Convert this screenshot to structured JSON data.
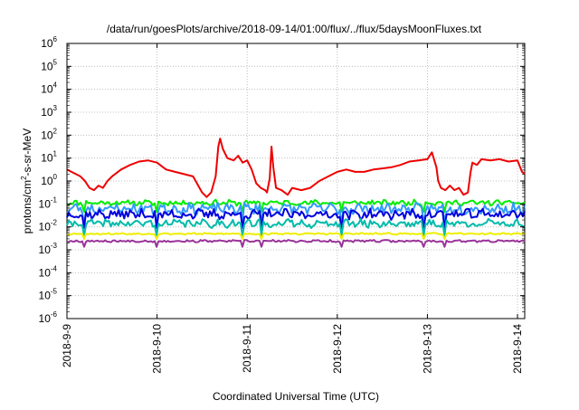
{
  "chart_data": {
    "type": "line",
    "title": "/data/run/goesPlots/archive/2018-09-14/01:00/flux/../flux/5daysMoonFluxes.txt",
    "xlabel": "Coordinated Universal Time (UTC)",
    "ylabel_main": "protons/cm",
    "ylabel_sup": "2",
    "ylabel_rest": "-s-sr-MeV",
    "y_scale": "log",
    "ylim_exp": [
      -6,
      6
    ],
    "ytick_exponents": [
      -6,
      -5,
      -4,
      -3,
      -2,
      -1,
      0,
      1,
      2,
      3,
      4,
      5,
      6
    ],
    "ytick_base": "10",
    "xlim_days": [
      0,
      5.08
    ],
    "xticks": [
      {
        "label": "2018-9-9",
        "day": 0
      },
      {
        "label": "2018-9-10",
        "day": 1
      },
      {
        "label": "2018-9-11",
        "day": 2
      },
      {
        "label": "2018-9-12",
        "day": 3
      },
      {
        "label": "2018-9-13",
        "day": 4
      },
      {
        "label": "2018-9-14",
        "day": 5
      }
    ],
    "grid": true,
    "series": [
      {
        "color": "#ee0000",
        "points": [
          [
            0.0,
            0.5
          ],
          [
            0.05,
            0.4
          ],
          [
            0.1,
            0.3
          ],
          [
            0.15,
            0.2
          ],
          [
            0.2,
            0.0
          ],
          [
            0.25,
            -0.3
          ],
          [
            0.3,
            -0.4
          ],
          [
            0.35,
            -0.2
          ],
          [
            0.4,
            -0.3
          ],
          [
            0.45,
            0.0
          ],
          [
            0.5,
            0.2
          ],
          [
            0.6,
            0.5
          ],
          [
            0.7,
            0.7
          ],
          [
            0.8,
            0.85
          ],
          [
            0.9,
            0.9
          ],
          [
            1.0,
            0.8
          ],
          [
            1.1,
            0.5
          ],
          [
            1.2,
            0.4
          ],
          [
            1.3,
            0.3
          ],
          [
            1.4,
            0.2
          ],
          [
            1.5,
            -0.5
          ],
          [
            1.55,
            -0.7
          ],
          [
            1.6,
            -0.5
          ],
          [
            1.65,
            0.2
          ],
          [
            1.68,
            1.5
          ],
          [
            1.7,
            1.85
          ],
          [
            1.73,
            1.4
          ],
          [
            1.78,
            1.0
          ],
          [
            1.85,
            0.9
          ],
          [
            1.9,
            1.1
          ],
          [
            1.95,
            0.8
          ],
          [
            2.0,
            0.9
          ],
          [
            2.05,
            0.5
          ],
          [
            2.1,
            -0.1
          ],
          [
            2.15,
            -0.3
          ],
          [
            2.2,
            -0.4
          ],
          [
            2.22,
            -0.5
          ],
          [
            2.25,
            0.1
          ],
          [
            2.27,
            1.5
          ],
          [
            2.29,
            0.6
          ],
          [
            2.32,
            -0.3
          ],
          [
            2.38,
            -0.4
          ],
          [
            2.45,
            -0.6
          ],
          [
            2.5,
            -0.3
          ],
          [
            2.6,
            -0.4
          ],
          [
            2.7,
            -0.3
          ],
          [
            2.8,
            0.0
          ],
          [
            2.9,
            0.2
          ],
          [
            3.0,
            0.4
          ],
          [
            3.1,
            0.5
          ],
          [
            3.2,
            0.4
          ],
          [
            3.3,
            0.4
          ],
          [
            3.4,
            0.5
          ],
          [
            3.5,
            0.55
          ],
          [
            3.6,
            0.6
          ],
          [
            3.7,
            0.7
          ],
          [
            3.8,
            0.85
          ],
          [
            3.9,
            0.9
          ],
          [
            4.0,
            0.95
          ],
          [
            4.05,
            1.25
          ],
          [
            4.1,
            0.6
          ],
          [
            4.12,
            0.0
          ],
          [
            4.15,
            -0.3
          ],
          [
            4.2,
            -0.4
          ],
          [
            4.25,
            -0.2
          ],
          [
            4.3,
            -0.4
          ],
          [
            4.35,
            -0.3
          ],
          [
            4.4,
            -0.6
          ],
          [
            4.45,
            -0.5
          ],
          [
            4.48,
            0.4
          ],
          [
            4.5,
            0.8
          ],
          [
            4.55,
            0.7
          ],
          [
            4.6,
            0.95
          ],
          [
            4.7,
            0.9
          ],
          [
            4.8,
            0.95
          ],
          [
            4.9,
            0.85
          ],
          [
            5.0,
            0.9
          ],
          [
            5.03,
            0.6
          ],
          [
            5.05,
            0.4
          ],
          [
            5.08,
            0.3
          ]
        ]
      },
      {
        "color": "#00ee00",
        "level": -0.95,
        "amp": 0.1,
        "seed": 11
      },
      {
        "color": "#3399ff",
        "level": -1.2,
        "amp": 0.2,
        "seed": 23
      },
      {
        "color": "#0000dd",
        "level": -1.45,
        "amp": 0.18,
        "seed": 37
      },
      {
        "color": "#00bbaa",
        "level": -1.85,
        "amp": 0.15,
        "seed": 41
      },
      {
        "color": "#eeee00",
        "level": -2.3,
        "amp": 0.03,
        "seed": 53
      },
      {
        "color": "#993399",
        "level": -2.62,
        "amp": 0.04,
        "seed": 67
      }
    ]
  }
}
